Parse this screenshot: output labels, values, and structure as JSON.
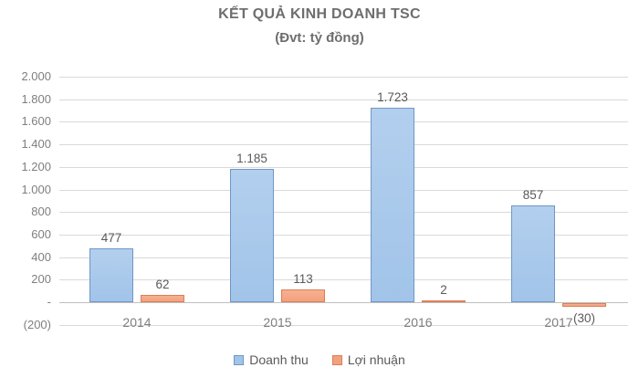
{
  "title": "KẾT QUẢ KINH DOANH TSC",
  "subtitle": "(Đvt: tỷ đồng)",
  "chart_data": {
    "type": "bar",
    "title": "KẾT QUẢ KINH DOANH TSC",
    "subtitle": "(Đvt: tỷ đồng)",
    "xlabel": "",
    "ylabel": "",
    "categories": [
      "2014",
      "2015",
      "2016",
      "2017"
    ],
    "series": [
      {
        "name": "Doanh thu",
        "values": [
          477,
          1185,
          1723,
          857
        ],
        "labels": [
          "477",
          "1.185",
          "1.723",
          "857"
        ],
        "fill_top": "#b3cfee",
        "fill_bottom": "#a1c4e9",
        "border": "#7096c6"
      },
      {
        "name": "Lợi nhuận",
        "values": [
          62,
          113,
          2,
          -30
        ],
        "labels": [
          "62",
          "113",
          "2",
          "(30)"
        ],
        "fill_top": "#f6b093",
        "fill_bottom": "#f2a17e",
        "border": "#dd7f56",
        "negative_label_in_axis_row": true
      }
    ],
    "ylim": [
      -200,
      2000
    ],
    "ytick_step": 200,
    "ytick_labels": [
      "2.000",
      "1.800",
      "1.600",
      "1.400",
      "1.200",
      "1.000",
      "800",
      "600",
      "400",
      "200",
      "-",
      "(200)"
    ],
    "grid": true,
    "gridline_color": "#d9d9d9",
    "zero_line_color": "#bfbfbf",
    "legend_position": "bottom",
    "text_colors": {
      "title": "#6e6e6e",
      "axis": "#7f7f7f",
      "data_label": "#595959"
    }
  }
}
